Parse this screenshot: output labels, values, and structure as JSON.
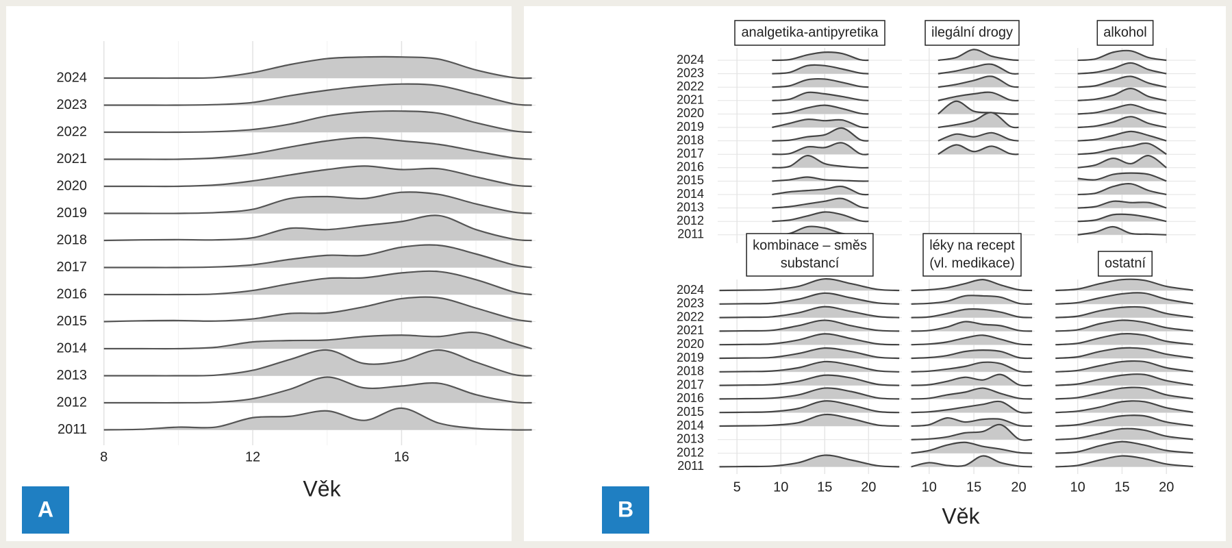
{
  "chart_data": [
    {
      "type": "ridgeline",
      "panel_label": "A",
      "x_label": "Věk",
      "color": "#c9c9c9",
      "line_color": "#555555",
      "xlim": [
        7.6,
        19.6
      ],
      "xticks": [
        8,
        12,
        16
      ],
      "minor_xticks": [
        10,
        14,
        18
      ],
      "categories": [
        "2024",
        "2023",
        "2022",
        "2021",
        "2020",
        "2019",
        "2018",
        "2017",
        "2016",
        "2015",
        "2014",
        "2013",
        "2012",
        "2011"
      ],
      "x": [
        8,
        9,
        10,
        11,
        12,
        13,
        14,
        15,
        16,
        17,
        18,
        19,
        19.5
      ],
      "values": [
        [
          0,
          0,
          0,
          0.02,
          0.2,
          0.5,
          0.72,
          0.78,
          0.78,
          0.7,
          0.3,
          0.02,
          0
        ],
        [
          0,
          0,
          0,
          0.02,
          0.1,
          0.35,
          0.55,
          0.7,
          0.78,
          0.72,
          0.4,
          0.05,
          0
        ],
        [
          0,
          0,
          0,
          0.02,
          0.1,
          0.3,
          0.6,
          0.75,
          0.78,
          0.7,
          0.35,
          0.05,
          0
        ],
        [
          0,
          0,
          0,
          0.05,
          0.2,
          0.45,
          0.68,
          0.8,
          0.68,
          0.55,
          0.3,
          0.05,
          0
        ],
        [
          0,
          0,
          0,
          0.05,
          0.2,
          0.42,
          0.62,
          0.75,
          0.62,
          0.65,
          0.35,
          0.05,
          0
        ],
        [
          0,
          0,
          0,
          0.03,
          0.15,
          0.55,
          0.62,
          0.55,
          0.78,
          0.7,
          0.35,
          0.05,
          0
        ],
        [
          0,
          0.02,
          0.03,
          0.02,
          0.1,
          0.45,
          0.4,
          0.55,
          0.7,
          0.92,
          0.4,
          0.05,
          0
        ],
        [
          0,
          0,
          0,
          0.02,
          0.1,
          0.3,
          0.45,
          0.45,
          0.75,
          0.82,
          0.5,
          0.1,
          0
        ],
        [
          0,
          0,
          0,
          0.02,
          0.15,
          0.4,
          0.6,
          0.62,
          0.8,
          0.85,
          0.55,
          0.1,
          0
        ],
        [
          0,
          0.03,
          0.04,
          0.02,
          0.1,
          0.3,
          0.32,
          0.55,
          0.85,
          0.88,
          0.5,
          0.1,
          0
        ],
        [
          0,
          0,
          0,
          0.05,
          0.25,
          0.3,
          0.32,
          0.45,
          0.5,
          0.45,
          0.6,
          0.2,
          0
        ],
        [
          0,
          0,
          0,
          0.02,
          0.2,
          0.6,
          0.95,
          0.45,
          0.55,
          0.95,
          0.5,
          0.05,
          0
        ],
        [
          0,
          0,
          0,
          0.02,
          0.15,
          0.5,
          0.95,
          0.55,
          0.62,
          0.72,
          0.3,
          0.03,
          0
        ],
        [
          0,
          0.02,
          0.1,
          0.1,
          0.45,
          0.5,
          0.7,
          0.35,
          0.8,
          0.25,
          0.05,
          0,
          0
        ]
      ]
    },
    {
      "type": "ridgeline-facets",
      "panel_label": "B",
      "x_label": "Věk",
      "color": "#c9c9c9",
      "line_color": "#444444",
      "categories": [
        "2024",
        "2023",
        "2022",
        "2021",
        "2020",
        "2019",
        "2018",
        "2017",
        "2016",
        "2015",
        "2014",
        "2013",
        "2012",
        "2011"
      ],
      "facets": [
        {
          "strip": [
            "analgetika-antipyretika"
          ],
          "xlim": [
            2.8,
            23.8
          ],
          "xticks": [
            5,
            10,
            15,
            20
          ],
          "x": [
            9,
            11,
            13,
            15,
            17,
            19,
            20
          ],
          "values": [
            [
              0,
              0.05,
              0.4,
              0.6,
              0.5,
              0.05,
              0
            ],
            [
              0,
              0.1,
              0.6,
              0.6,
              0.35,
              0.05,
              0
            ],
            [
              0,
              0.1,
              0.55,
              0.6,
              0.35,
              0.05,
              0
            ],
            [
              0,
              0.1,
              0.6,
              0.5,
              0.3,
              0.05,
              0
            ],
            [
              0,
              0.1,
              0.45,
              0.65,
              0.4,
              0.05,
              0
            ],
            [
              0,
              0.3,
              0.6,
              0.5,
              0.55,
              0.05,
              0
            ],
            [
              0,
              0.05,
              0.3,
              0.45,
              0.95,
              0.1,
              0
            ],
            [
              0,
              0.05,
              0.55,
              0.5,
              0.85,
              0.05,
              0
            ],
            [
              0,
              0.1,
              0.9,
              0.3,
              0.1,
              0,
              0
            ],
            [
              0,
              0.1,
              0.3,
              0.1,
              0.05,
              0,
              0
            ],
            [
              0,
              0.2,
              0.3,
              0.4,
              0.6,
              0.05,
              0
            ],
            [
              0,
              0.1,
              0.3,
              0.5,
              0.7,
              0.1,
              0
            ],
            [
              0,
              0.1,
              0.4,
              0.7,
              0.5,
              0.05,
              0
            ],
            [
              0,
              0.1,
              0.6,
              0.5,
              0.1,
              0,
              0
            ]
          ]
        },
        {
          "strip": [
            "ilegální drogy"
          ],
          "xlim": [
            7.8,
            21.8
          ],
          "xticks": [
            10,
            15,
            20
          ],
          "x": [
            11,
            13,
            15,
            17,
            19,
            20
          ],
          "values": [
            [
              0,
              0.2,
              0.8,
              0.3,
              0.05,
              0
            ],
            [
              0,
              0.2,
              0.5,
              0.7,
              0.05,
              0
            ],
            [
              0,
              0.2,
              0.5,
              0.8,
              0.1,
              0
            ],
            [
              0,
              0.3,
              0.5,
              0.6,
              0.05,
              0
            ],
            [
              0,
              0.95,
              0.2,
              0.1,
              0,
              0
            ],
            [
              0,
              0.2,
              0.5,
              1.1,
              0.1,
              0
            ],
            [
              0,
              0.5,
              0.3,
              0.6,
              0.1,
              0
            ],
            [
              0,
              0.7,
              0.2,
              0.6,
              0.05,
              0
            ],
            null,
            null,
            null,
            null,
            null,
            null
          ]
        },
        {
          "strip": [
            "alkohol"
          ],
          "xlim": [
            7.4,
            23.3
          ],
          "xticks": [
            10,
            15,
            20
          ],
          "x": [
            10,
            12,
            14,
            16,
            18,
            20
          ],
          "values": [
            [
              0,
              0.1,
              0.6,
              0.7,
              0.2,
              0
            ],
            [
              0,
              0.1,
              0.4,
              0.8,
              0.3,
              0
            ],
            [
              0,
              0.1,
              0.5,
              0.8,
              0.3,
              0
            ],
            [
              0,
              0.1,
              0.4,
              0.9,
              0.3,
              0
            ],
            [
              0,
              0.1,
              0.4,
              0.7,
              0.3,
              0
            ],
            [
              0,
              0.1,
              0.4,
              0.8,
              0.3,
              0
            ],
            [
              0,
              0.1,
              0.4,
              0.7,
              0.4,
              0
            ],
            [
              0,
              0.1,
              0.4,
              0.6,
              0.8,
              0
            ],
            [
              0,
              0.2,
              0.7,
              0.3,
              0.9,
              0
            ],
            [
              0.2,
              0.1,
              0.5,
              0.6,
              0.5,
              0
            ],
            [
              0,
              0.1,
              0.6,
              0.8,
              0.3,
              0
            ],
            [
              0,
              0.1,
              0.5,
              0.4,
              0.4,
              0
            ],
            [
              0,
              0.1,
              0.5,
              0.5,
              0.3,
              0
            ],
            [
              0,
              0.2,
              0.6,
              0.1,
              0.05,
              0
            ]
          ]
        },
        {
          "strip": [
            "kombinace – směs",
            "substancí"
          ],
          "xlim": [
            2.8,
            23.8
          ],
          "xticks": [
            5,
            10,
            15,
            20
          ],
          "x": [
            3,
            6,
            9,
            12,
            15,
            18,
            21,
            23.5
          ],
          "values": [
            [
              0,
              0.02,
              0.06,
              0.3,
              0.85,
              0.5,
              0.08,
              0
            ],
            [
              0,
              0.02,
              0.06,
              0.35,
              0.8,
              0.45,
              0.08,
              0
            ],
            [
              0,
              0.02,
              0.06,
              0.35,
              0.8,
              0.45,
              0.08,
              0
            ],
            [
              0,
              0.02,
              0.06,
              0.4,
              0.8,
              0.4,
              0.06,
              0
            ],
            [
              0,
              0.02,
              0.06,
              0.35,
              0.8,
              0.45,
              0.06,
              0
            ],
            [
              0,
              0.02,
              0.06,
              0.35,
              0.75,
              0.5,
              0.08,
              0
            ],
            [
              0,
              0.02,
              0.06,
              0.3,
              0.75,
              0.5,
              0.08,
              0
            ],
            [
              0,
              0.02,
              0.06,
              0.3,
              0.75,
              0.55,
              0.08,
              0
            ],
            [
              0,
              0.02,
              0.06,
              0.3,
              0.8,
              0.55,
              0.08,
              0
            ],
            [
              0,
              0.02,
              0.06,
              0.3,
              0.85,
              0.55,
              0.08,
              0
            ],
            [
              0,
              0.02,
              0.06,
              0.25,
              0.85,
              0.55,
              0.08,
              0
            ],
            null,
            null,
            [
              0,
              0.02,
              0.05,
              0.3,
              0.85,
              0.5,
              0.08,
              0
            ]
          ]
        },
        {
          "strip": [
            "léky na recept",
            "(vl. medikace)"
          ],
          "xlim": [
            7.8,
            21.8
          ],
          "xticks": [
            10,
            15,
            20
          ],
          "x": [
            8,
            10,
            12,
            14,
            16,
            18,
            20,
            21.5
          ],
          "values": [
            [
              0,
              0.05,
              0.2,
              0.5,
              0.8,
              0.4,
              0.05,
              0
            ],
            [
              0,
              0.05,
              0.2,
              0.6,
              0.6,
              0.5,
              0.05,
              0
            ],
            [
              0,
              0.05,
              0.3,
              0.6,
              0.6,
              0.4,
              0.05,
              0
            ],
            [
              0,
              0.05,
              0.3,
              0.7,
              0.5,
              0.4,
              0.05,
              0
            ],
            [
              0,
              0.05,
              0.2,
              0.5,
              0.7,
              0.4,
              0.05,
              0
            ],
            [
              0,
              0.05,
              0.2,
              0.5,
              0.6,
              0.5,
              0.05,
              0
            ],
            [
              0,
              0.05,
              0.2,
              0.4,
              0.7,
              0.6,
              0.05,
              0
            ],
            [
              0,
              0.05,
              0.3,
              0.6,
              0.4,
              0.8,
              0.05,
              0
            ],
            [
              0,
              0.05,
              0.3,
              0.5,
              0.8,
              0.4,
              0.05,
              0
            ],
            [
              0,
              0.05,
              0.2,
              0.4,
              0.6,
              0.8,
              0.05,
              0
            ],
            [
              0,
              0.1,
              0.6,
              0.3,
              0.5,
              0.5,
              0.05,
              0
            ],
            [
              0,
              0.05,
              0.2,
              0.5,
              0.6,
              1.1,
              0.05,
              0
            ],
            [
              0,
              0.2,
              0.6,
              0.8,
              0.5,
              0.3,
              0.05,
              0
            ],
            [
              0,
              0.3,
              0.1,
              0.1,
              0.8,
              0.3,
              0.05,
              0
            ]
          ]
        },
        {
          "strip": [
            "ostatní"
          ],
          "xlim": [
            7.4,
            23.3
          ],
          "xticks": [
            10,
            15,
            20
          ],
          "x": [
            7.5,
            10,
            12.5,
            15,
            17.5,
            20,
            23
          ],
          "values": [
            [
              0,
              0.1,
              0.5,
              0.8,
              0.75,
              0.3,
              0.02
            ],
            [
              0,
              0.1,
              0.45,
              0.75,
              0.8,
              0.35,
              0.02
            ],
            [
              0,
              0.1,
              0.5,
              0.75,
              0.75,
              0.3,
              0.02
            ],
            [
              0,
              0.1,
              0.55,
              0.8,
              0.65,
              0.25,
              0.02
            ],
            [
              0,
              0.1,
              0.5,
              0.8,
              0.7,
              0.25,
              0.02
            ],
            [
              0,
              0.1,
              0.5,
              0.75,
              0.7,
              0.3,
              0.02
            ],
            [
              0,
              0.1,
              0.45,
              0.75,
              0.75,
              0.3,
              0.02
            ],
            [
              0,
              0.1,
              0.45,
              0.75,
              0.8,
              0.35,
              0.02
            ],
            [
              0,
              0.1,
              0.45,
              0.8,
              0.8,
              0.3,
              0.02
            ],
            [
              0,
              0.1,
              0.4,
              0.8,
              0.8,
              0.35,
              0.02
            ],
            [
              0,
              0.1,
              0.45,
              0.75,
              0.75,
              0.3,
              0.02
            ],
            [
              0,
              0.1,
              0.45,
              0.8,
              0.7,
              0.25,
              0.02
            ],
            [
              0,
              0.1,
              0.55,
              0.85,
              0.6,
              0.2,
              0.02
            ],
            [
              0,
              0.1,
              0.5,
              0.8,
              0.6,
              0.2,
              0.02
            ]
          ]
        }
      ]
    }
  ]
}
